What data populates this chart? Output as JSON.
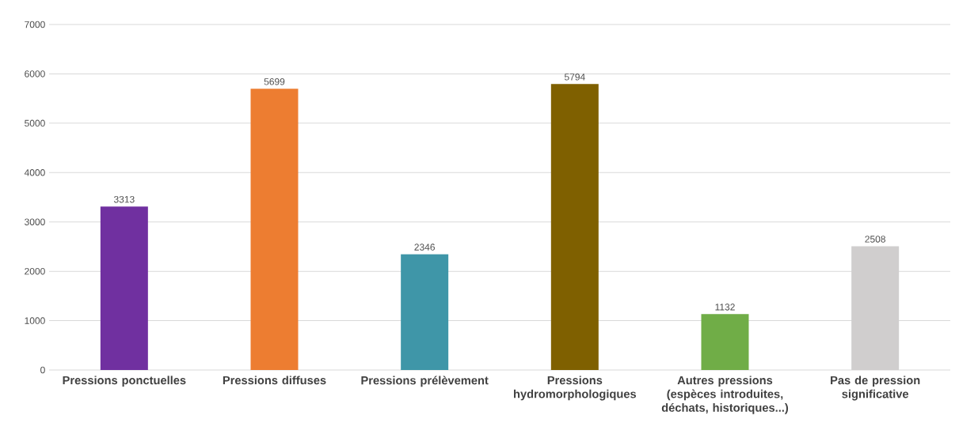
{
  "chart_data": {
    "type": "bar",
    "categories": [
      "Pressions ponctuelles",
      "Pressions diffuses",
      "Pressions prélèvement",
      "Pressions hydromorphologiques",
      "Autres pressions (espèces introduites, déchats, historiques...)",
      "Pas de pression significative"
    ],
    "values": [
      3313,
      5699,
      2346,
      5794,
      1132,
      2508
    ],
    "colors": [
      "#7030a0",
      "#ed7d31",
      "#3f96a8",
      "#7f6000",
      "#70ad47",
      "#d0cece"
    ],
    "ylim": [
      0,
      7000
    ],
    "yticks": [
      0,
      1000,
      2000,
      3000,
      4000,
      5000,
      6000,
      7000
    ],
    "grid": "y",
    "data_labels": true
  }
}
